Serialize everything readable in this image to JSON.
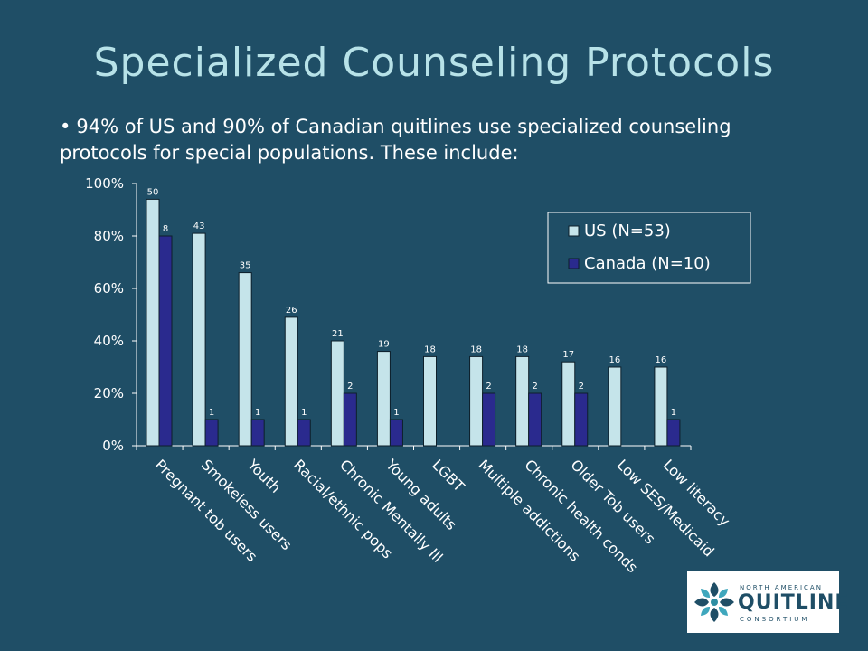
{
  "slide": {
    "title": "Specialized Counseling Protocols",
    "bullet": "94% of US and 90% of Canadian quitlines use specialized counseling protocols for special populations. These include:"
  },
  "logo": {
    "line1": "NORTH AMERICAN",
    "line2": "QUITLINE",
    "line3": "CONSORTIUM"
  },
  "colors": {
    "background": "#1f4e66",
    "title": "#b7e2e8",
    "us_bar": "#c5e4ea",
    "canada_bar": "#2a2a8e"
  },
  "chart_data": {
    "type": "bar",
    "categories": [
      "Pregnant tob users",
      "Smokeless users",
      "Youth",
      "Racial/ethnic pops",
      "Chronic Mentally Ill",
      "Young adults",
      "LGBT",
      "Multiple addictions",
      "Chronic health conds",
      "Older Tob users",
      "Low SES/Medicaid",
      "Low literacy"
    ],
    "series": [
      {
        "name": "US (N=53)",
        "values": [
          94,
          81,
          66,
          49,
          40,
          36,
          34,
          34,
          34,
          32,
          30,
          30
        ],
        "labels": [
          "50",
          "43",
          "35",
          "26",
          "21",
          "19",
          "18",
          "18",
          "18",
          "17",
          "16",
          "16"
        ]
      },
      {
        "name": "Canada (N=10)",
        "values": [
          80,
          10,
          10,
          10,
          20,
          10,
          0,
          20,
          20,
          20,
          0,
          10
        ],
        "labels": [
          "8",
          "1",
          "1",
          "1",
          "2",
          "1",
          "",
          "2",
          "2",
          "2",
          "",
          "1"
        ]
      }
    ],
    "yticks": [
      "0%",
      "20%",
      "40%",
      "60%",
      "80%",
      "100%"
    ],
    "ylim": [
      0,
      100
    ],
    "legend": "top-right",
    "grid": false
  }
}
